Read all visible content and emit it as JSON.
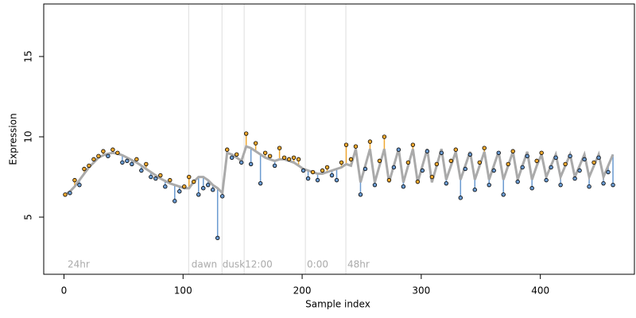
{
  "chart_data": {
    "type": "scatter",
    "x_label": "Sample index",
    "y_label": "Expression",
    "xlim": [
      -17,
      479
    ],
    "ylim": [
      1.44,
      18.27
    ],
    "xticks": [
      0,
      100,
      200,
      300,
      400
    ],
    "yticks": [
      5,
      10,
      15
    ],
    "point_color": "#000000",
    "fit_color": "#aaaaaa",
    "positive_color": "#f0a830",
    "negative_color": "#6a9ad0",
    "vline_color": "#dddddd",
    "vlines": [
      104.7,
      132.7,
      151.3,
      202.7,
      236.7
    ],
    "region_labels": [
      {
        "x": 3,
        "label": "24hr"
      },
      {
        "x": 107,
        "label": "dawn"
      },
      {
        "x": 133,
        "label": "dusk"
      },
      {
        "x": 152,
        "label": "12:00"
      },
      {
        "x": 204,
        "label": "0:00"
      },
      {
        "x": 238,
        "label": "48hr"
      }
    ],
    "x": [
      1,
      5,
      9,
      13,
      17,
      21,
      25,
      29,
      33,
      37,
      41,
      45,
      49,
      53,
      57,
      61,
      65,
      69,
      73,
      77,
      81,
      85,
      89,
      93,
      97,
      101,
      105,
      109,
      113,
      117,
      121,
      125,
      129,
      133,
      137,
      141,
      145,
      149,
      153,
      157,
      161,
      165,
      169,
      173,
      177,
      181,
      185,
      189,
      193,
      197,
      201,
      205,
      209,
      213,
      217,
      221,
      225,
      229,
      233,
      237,
      241,
      245,
      249,
      253,
      257,
      261,
      265,
      269,
      273,
      277,
      281,
      285,
      289,
      293,
      297,
      301,
      305,
      309,
      313,
      317,
      321,
      325,
      329,
      333,
      337,
      341,
      345,
      349,
      353,
      357,
      361,
      365,
      369,
      373,
      377,
      381,
      385,
      389,
      393,
      397,
      401,
      405,
      409,
      413,
      417,
      421,
      425,
      429,
      433,
      437,
      441,
      445,
      449,
      453,
      457,
      461
    ],
    "values": [
      6.4,
      6.5,
      7.3,
      7.0,
      8.0,
      8.2,
      8.6,
      8.8,
      9.1,
      8.8,
      9.2,
      9.0,
      8.4,
      8.5,
      8.3,
      8.6,
      7.9,
      8.3,
      7.5,
      7.4,
      7.6,
      6.9,
      7.3,
      6.0,
      6.6,
      6.9,
      7.5,
      7.2,
      6.4,
      6.8,
      7.0,
      6.7,
      3.7,
      6.3,
      9.2,
      8.7,
      8.9,
      8.4,
      10.2,
      8.3,
      9.6,
      7.1,
      9.0,
      8.8,
      8.2,
      9.3,
      8.7,
      8.6,
      8.7,
      8.6,
      7.9,
      7.4,
      7.8,
      7.3,
      7.9,
      8.1,
      7.6,
      7.3,
      8.4,
      9.5,
      8.6,
      9.4,
      6.4,
      8.0,
      9.7,
      7.0,
      8.5,
      10.0,
      7.3,
      8.1,
      9.2,
      6.9,
      8.4,
      9.5,
      7.2,
      7.9,
      9.1,
      7.5,
      8.3,
      9.0,
      7.1,
      8.5,
      9.2,
      6.2,
      8.0,
      8.9,
      6.7,
      8.4,
      9.3,
      7.0,
      7.9,
      9.0,
      6.4,
      8.3,
      9.1,
      7.2,
      8.1,
      8.8,
      6.8,
      8.5,
      9.0,
      7.3,
      8.1,
      8.7,
      7.0,
      8.3,
      8.8,
      7.4,
      7.9,
      8.6,
      6.9,
      8.4,
      8.7,
      7.1,
      7.8,
      7.0
    ],
    "fit": [
      6.4,
      6.6,
      6.9,
      7.3,
      7.7,
      8.1,
      8.4,
      8.7,
      8.85,
      8.95,
      9.0,
      8.95,
      8.85,
      8.7,
      8.55,
      8.4,
      8.2,
      8.0,
      7.8,
      7.6,
      7.4,
      7.25,
      7.1,
      7.0,
      6.9,
      6.8,
      6.8,
      7.2,
      7.5,
      7.5,
      7.3,
      7.0,
      6.8,
      6.5,
      9.0,
      8.9,
      8.7,
      8.5,
      9.4,
      9.3,
      9.1,
      8.9,
      8.7,
      8.6,
      8.5,
      8.6,
      8.6,
      8.5,
      8.4,
      8.2,
      8.0,
      7.9,
      7.8,
      7.7,
      7.7,
      7.8,
      7.9,
      8.0,
      8.1,
      8.3,
      8.2,
      9.24,
      7.16,
      8.2,
      9.24,
      7.16,
      8.2,
      9.24,
      7.16,
      8.2,
      9.24,
      7.16,
      8.2,
      9.24,
      7.16,
      8.2,
      9.24,
      7.16,
      8.2,
      9.24,
      7.33,
      8.2,
      9.07,
      7.33,
      8.2,
      9.07,
      7.33,
      8.2,
      9.07,
      7.33,
      8.2,
      9.07,
      7.33,
      8.2,
      9.07,
      7.33,
      8.2,
      9.07,
      7.33,
      8.2,
      8.9,
      7.5,
      8.2,
      8.9,
      7.5,
      8.2,
      8.9,
      7.5,
      8.2,
      8.9,
      7.5,
      8.2,
      8.9,
      7.5,
      8.2,
      8.9
    ]
  }
}
